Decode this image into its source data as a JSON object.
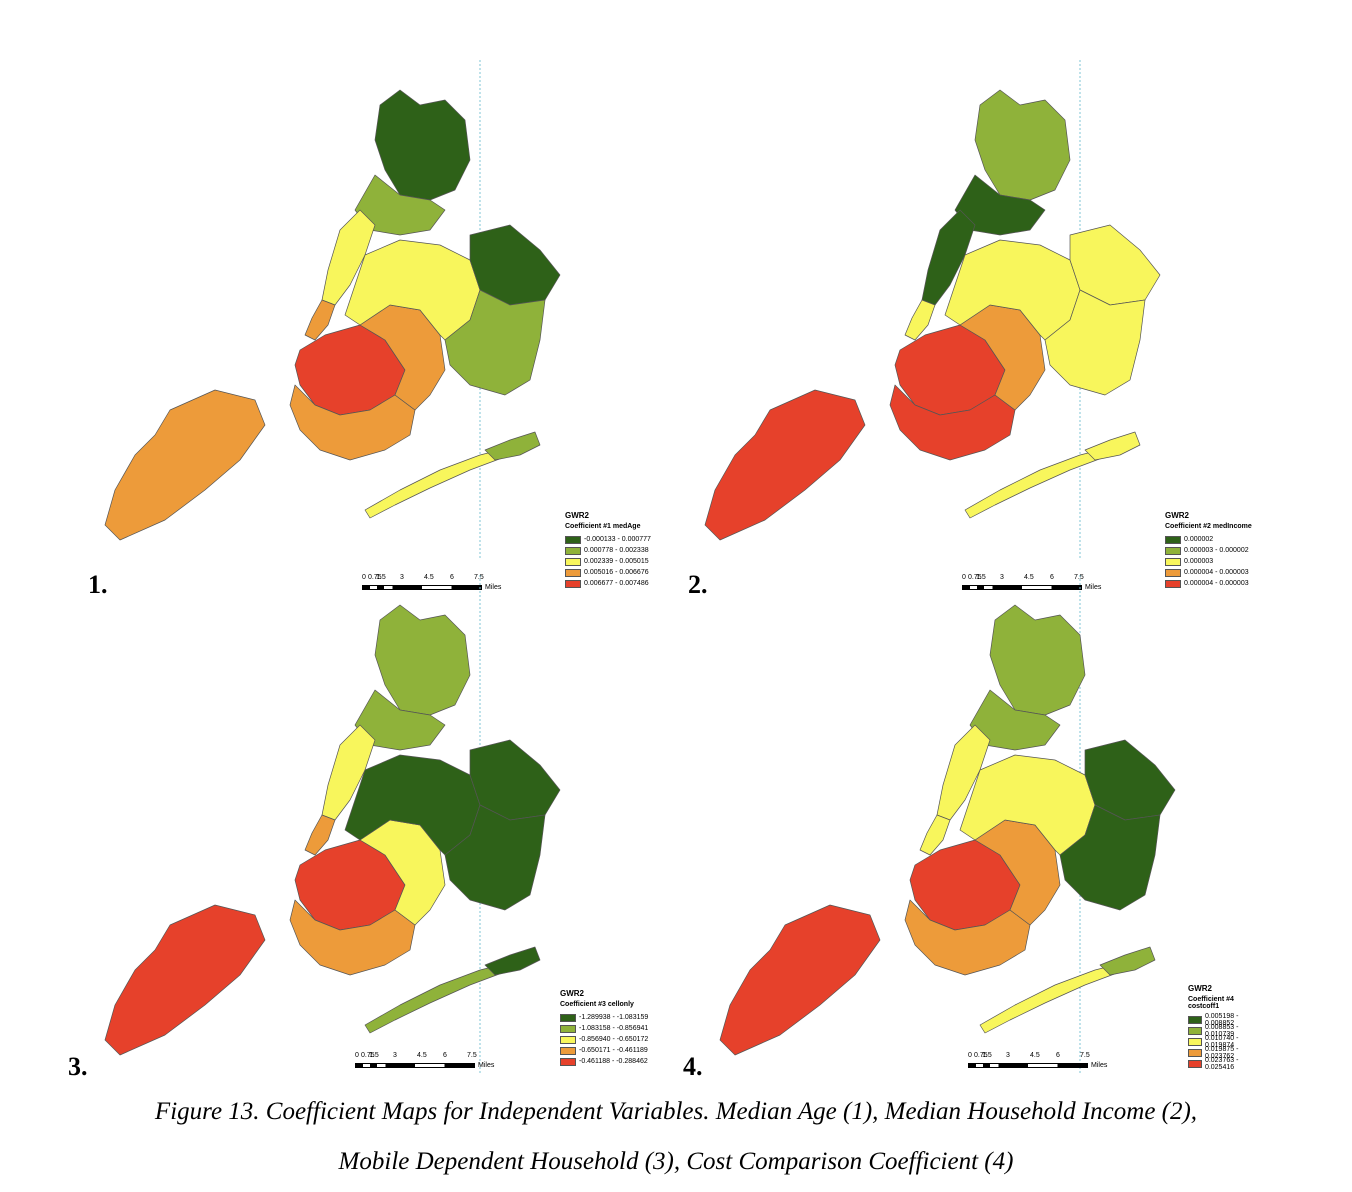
{
  "colors": {
    "dark_green": "#2e6118",
    "light_green": "#8fb23a",
    "yellow": "#f8f65c",
    "orange": "#ed9b3a",
    "red": "#e6412b"
  },
  "panels": [
    {
      "number": "1.",
      "legend_title": "GWR2",
      "legend_subtitle": "Coefficient #1 medAge",
      "legend_items": [
        "-0.000133 - 0.000777",
        "0.000778 - 0.002338",
        "0.002339 - 0.005015",
        "0.005016 - 0.006676",
        "0.006677 - 0.007486"
      ],
      "region_colors": {
        "staten": "orange",
        "bk_west": "red",
        "bk_south": "orange",
        "queens_west": "orange",
        "bronx_north": "dark_green",
        "bronx_south": "light_green",
        "manhattan_n": "yellow",
        "manhattan_s": "orange",
        "queens_mid": "yellow",
        "queens_east_n": "dark_green",
        "queens_east_s": "light_green",
        "rockaway": "yellow",
        "rockaway_tip": "light_green"
      }
    },
    {
      "number": "2.",
      "legend_title": "GWR2",
      "legend_subtitle": "Coefficient #2 medIncome",
      "legend_items": [
        "0.000002",
        "0.000003 - 0.000002",
        "0.000003",
        "0.000004 - 0.000003",
        "0.000004 - 0.000003"
      ],
      "region_colors": {
        "staten": "red",
        "bk_west": "red",
        "bk_south": "red",
        "queens_west": "orange",
        "bronx_north": "light_green",
        "bronx_south": "dark_green",
        "manhattan_n": "dark_green",
        "manhattan_s": "yellow",
        "queens_mid": "yellow",
        "queens_east_n": "yellow",
        "queens_east_s": "yellow",
        "rockaway": "yellow",
        "rockaway_tip": "yellow"
      }
    },
    {
      "number": "3.",
      "legend_title": "GWR2",
      "legend_subtitle": "Coefficient #3 cellonly",
      "legend_items": [
        "-1.289938 - -1.083159",
        "-1.083158 - -0.856941",
        "-0.856940 - -0.650172",
        "-0.650171 - -0.461189",
        "-0.461188 - -0.288462"
      ],
      "region_colors": {
        "staten": "red",
        "bk_west": "red",
        "bk_south": "orange",
        "queens_west": "yellow",
        "bronx_north": "light_green",
        "bronx_south": "light_green",
        "manhattan_n": "yellow",
        "manhattan_s": "orange",
        "queens_mid": "dark_green",
        "queens_east_n": "dark_green",
        "queens_east_s": "dark_green",
        "rockaway": "light_green",
        "rockaway_tip": "dark_green"
      }
    },
    {
      "number": "4.",
      "legend_title": "GWR2",
      "legend_subtitle": "Coefficient #4 costcoff1",
      "legend_items": [
        "0.005198 - 0.008852",
        "0.008853 - 0.010739",
        "0.010740 - 0.019874",
        "0.019875 - 0.023762",
        "0.023763 - 0.025416"
      ],
      "region_colors": {
        "staten": "red",
        "bk_west": "red",
        "bk_south": "orange",
        "queens_west": "orange",
        "bronx_north": "light_green",
        "bronx_south": "light_green",
        "manhattan_n": "yellow",
        "manhattan_s": "yellow",
        "queens_mid": "yellow",
        "queens_east_n": "dark_green",
        "queens_east_s": "dark_green",
        "rockaway": "yellow",
        "rockaway_tip": "light_green"
      }
    }
  ],
  "scale_bar": {
    "ticks": [
      "0",
      "0.75",
      "1.5",
      "3",
      "4.5",
      "6",
      "7.5"
    ],
    "unit": "Miles"
  },
  "caption": {
    "line1": "Figure 13. Coefficient Maps for Independent Variables. Median Age (1), Median Household Income (2),",
    "line2": "Mobile Dependent Household (3), Cost Comparison Coefficient (4)"
  }
}
